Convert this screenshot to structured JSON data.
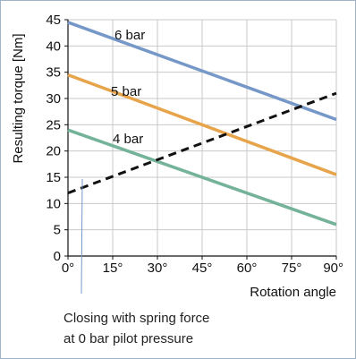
{
  "chart_data": {
    "type": "line",
    "xlabel": "Rotation angle",
    "ylabel": "Resulting torque  [Nm]",
    "xlim": [
      0,
      90
    ],
    "ylim": [
      0,
      45
    ],
    "x_ticks": [
      0,
      15,
      30,
      45,
      60,
      75,
      90
    ],
    "x_tick_labels": [
      "0°",
      "15°",
      "30°",
      "45°",
      "60°",
      "75°",
      "90°"
    ],
    "y_ticks": [
      0,
      5,
      10,
      15,
      20,
      25,
      30,
      35,
      40,
      45
    ],
    "y_tick_labels": [
      "0",
      "5",
      "10",
      "15",
      "20",
      "25",
      "30",
      "35",
      "40",
      "45"
    ],
    "grid": true,
    "series": [
      {
        "name": "6 bar",
        "color": "#7598c8",
        "style": "solid",
        "x": [
          0,
          90
        ],
        "y": [
          44.5,
          26
        ]
      },
      {
        "name": "5 bar",
        "color": "#e8a44b",
        "style": "solid",
        "x": [
          0,
          90
        ],
        "y": [
          34.5,
          15.5
        ]
      },
      {
        "name": "4 bar",
        "color": "#74b39a",
        "style": "solid",
        "x": [
          0,
          90
        ],
        "y": [
          24,
          6
        ]
      },
      {
        "name": "",
        "color": "#111111",
        "style": "dashed",
        "x": [
          0,
          90
        ],
        "y": [
          12,
          31
        ]
      }
    ],
    "annotation": {
      "lines": [
        "Closing with spring force",
        "at 0 bar pilot pressure"
      ],
      "pointer_color": "#7598c8"
    }
  }
}
